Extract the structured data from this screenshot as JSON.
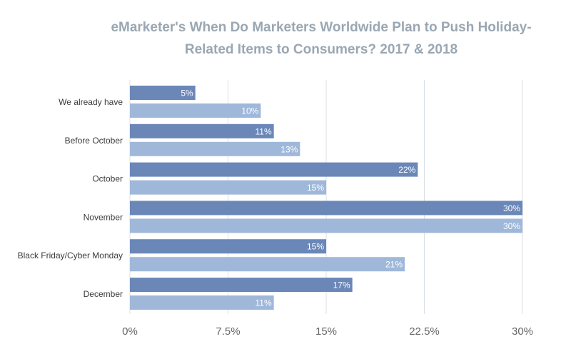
{
  "chart_data": {
    "type": "bar",
    "orientation": "horizontal",
    "title_lines": [
      "eMarketer's When Do Marketers Worldwide Plan to Push Holiday-",
      "Related Items to Consumers? 2017 & 2018"
    ],
    "categories": [
      "We already have",
      "Before October",
      "October",
      "November",
      "Black Friday/Cyber Monday",
      "December"
    ],
    "series": [
      {
        "values": [
          5,
          11,
          22,
          30,
          15,
          17
        ],
        "labels": [
          "5%",
          "11%",
          "22%",
          "30%",
          "15%",
          "17%"
        ],
        "color": "#6a87b8"
      },
      {
        "values": [
          10,
          13,
          15,
          30,
          21,
          11
        ],
        "labels": [
          "10%",
          "13%",
          "15%",
          "30%",
          "21%",
          "11%"
        ],
        "color": "#9fb8da"
      }
    ],
    "xlim": [
      0,
      30
    ],
    "ticks": [
      0,
      7.5,
      15,
      22.5,
      30
    ],
    "tick_labels": [
      "0%",
      "7.5%",
      "15%",
      "22.5%",
      "30%"
    ],
    "grid": "vertical",
    "legend": "none",
    "colors": {
      "title": "#9aa7b3",
      "grid": "#d9dfe6",
      "bar_label": "#ffffff",
      "category_label": "#3a3a3a",
      "tick_label": "#666666"
    }
  }
}
